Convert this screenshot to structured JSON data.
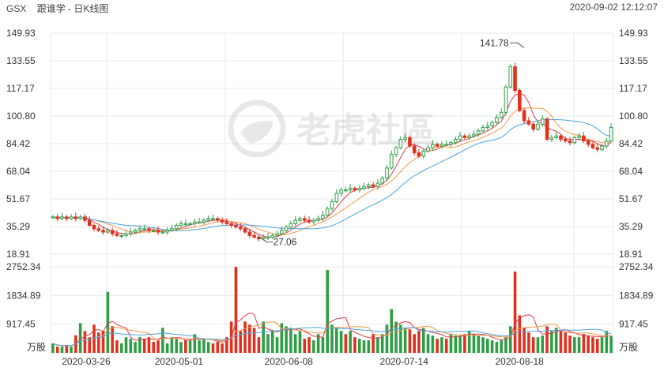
{
  "header": {
    "symbol": "GSX",
    "subtitle": "跟谁学 - 日K线图",
    "datetime": "2020-09-02 12:12:07"
  },
  "watermark": {
    "text": "老虎社區"
  },
  "colors": {
    "up": "#2e9e45",
    "down": "#e0301e",
    "ma5": "#e23b4d",
    "ma10": "#f2994a",
    "ma20": "#4aa3df",
    "grid": "#e6e9ee"
  },
  "chart_data": [
    {
      "type": "candlestick",
      "title": "跟谁学 - 日K线图",
      "y_ticks": [
        149.93,
        133.55,
        117.17,
        100.8,
        84.42,
        68.04,
        51.67,
        35.29,
        18.91
      ],
      "y_tick_labels": [
        "149.93",
        "133.55",
        "117.17",
        "100.80",
        "84.42",
        "68.04",
        "51.67",
        "35.29",
        "18.91"
      ],
      "ylim": [
        18.91,
        149.93
      ],
      "x_tick_labels": [
        "2020-03-26",
        "2020-05-01",
        "2020-06-08",
        "2020-07-14",
        "2020-08-18"
      ],
      "annotations": [
        {
          "text": "141.78",
          "value": 141.78,
          "index": 104
        },
        {
          "text": "27.06",
          "value": 27.06,
          "index": 45
        }
      ],
      "grid": true,
      "series_lines": [
        "ma5",
        "ma10",
        "ma20"
      ],
      "close": [
        41,
        40,
        41,
        40,
        41,
        40,
        41,
        39,
        36,
        34,
        33,
        32,
        33,
        31,
        30,
        30,
        31,
        32,
        33,
        34,
        34,
        33,
        33,
        32,
        32,
        33,
        34,
        36,
        37,
        37,
        37,
        38,
        38,
        39,
        40,
        40,
        39,
        38,
        37,
        36,
        35,
        34,
        32,
        30,
        29,
        28,
        29,
        29,
        30,
        31,
        33,
        35,
        37,
        39,
        40,
        39,
        38,
        39,
        40,
        42,
        46,
        50,
        55,
        57,
        57,
        58,
        57,
        58,
        59,
        60,
        59,
        61,
        64,
        70,
        78,
        82,
        87,
        88,
        83,
        79,
        77,
        80,
        82,
        84,
        83,
        84,
        84,
        85,
        87,
        89,
        88,
        89,
        90,
        92,
        94,
        95,
        97,
        100,
        103,
        118,
        130,
        116,
        104,
        98,
        96,
        93,
        96,
        99,
        87,
        88,
        89,
        87,
        86,
        85,
        88,
        89,
        86,
        84,
        82,
        81,
        83,
        86,
        94
      ]
    },
    {
      "type": "bar",
      "title": "",
      "unit": "万股",
      "y_ticks": [
        2752.34,
        1834.89,
        917.45
      ],
      "y_tick_labels": [
        "2752.34",
        "1834.89",
        "917.45"
      ],
      "ylim": [
        0,
        2752.34
      ],
      "values": [
        300,
        200,
        200,
        250,
        200,
        560,
        950,
        700,
        500,
        900,
        650,
        700,
        1950,
        850,
        400,
        300,
        500,
        450,
        350,
        500,
        450,
        500,
        350,
        400,
        800,
        300,
        500,
        450,
        350,
        400,
        400,
        600,
        400,
        450,
        350,
        300,
        350,
        300,
        500,
        1000,
        2750,
        700,
        1000,
        900,
        800,
        500,
        1000,
        600,
        700,
        500,
        950,
        850,
        800,
        600,
        700,
        450,
        500,
        400,
        600,
        500,
        2650,
        900,
        800,
        700,
        600,
        700,
        500,
        450,
        400,
        400,
        600,
        500,
        600,
        900,
        1400,
        1000,
        900,
        800,
        750,
        600,
        700,
        800,
        600,
        550,
        450,
        500,
        450,
        600,
        550,
        550,
        600,
        700,
        600,
        550,
        500,
        450,
        400,
        350,
        400,
        500,
        850,
        2600,
        1200,
        800,
        650,
        500,
        500,
        550,
        850,
        700,
        800,
        700,
        650,
        550,
        500,
        500,
        600,
        550,
        500,
        450,
        500,
        700,
        550
      ],
      "up": [
        1,
        0,
        1,
        0,
        1,
        0,
        1,
        0,
        0,
        0,
        0,
        0,
        1,
        0,
        0,
        1,
        1,
        1,
        1,
        1,
        0,
        0,
        0,
        0,
        1,
        1,
        1,
        1,
        1,
        0,
        1,
        1,
        1,
        1,
        1,
        0,
        0,
        0,
        0,
        0,
        0,
        0,
        0,
        0,
        0,
        0,
        1,
        1,
        1,
        1,
        1,
        1,
        1,
        1,
        1,
        0,
        0,
        1,
        1,
        1,
        1,
        1,
        1,
        1,
        0,
        1,
        0,
        1,
        1,
        1,
        0,
        1,
        1,
        1,
        1,
        1,
        1,
        1,
        0,
        0,
        0,
        1,
        1,
        1,
        0,
        1,
        0,
        1,
        1,
        1,
        0,
        1,
        1,
        1,
        1,
        1,
        1,
        1,
        1,
        1,
        1,
        0,
        0,
        0,
        0,
        0,
        1,
        1,
        0,
        1,
        1,
        0,
        0,
        0,
        1,
        1,
        0,
        0,
        0,
        0,
        1,
        1,
        1
      ]
    }
  ]
}
